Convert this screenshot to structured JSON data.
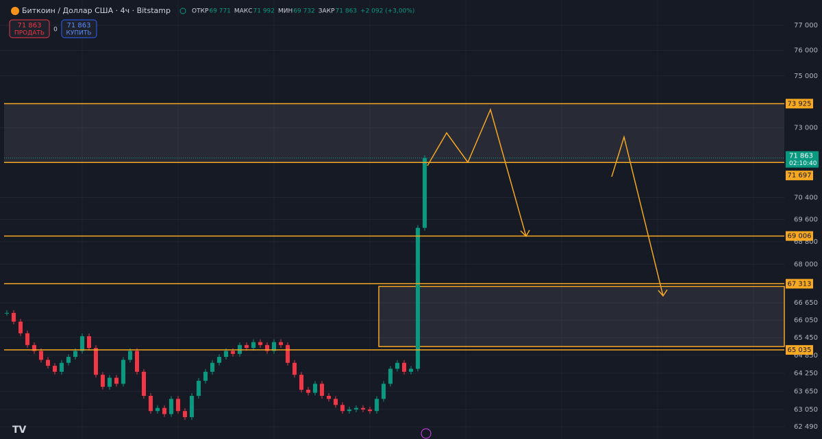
{
  "header": {
    "symbol": "Биткоин / Доллар США · 4ч · Bitstamp",
    "ohlc": [
      {
        "label": "ОТКР",
        "value": "69 771"
      },
      {
        "label": "МАКС",
        "value": "71 992"
      },
      {
        "label": "МИН",
        "value": "69 732"
      },
      {
        "label": "ЗАКР",
        "value": "71 863"
      }
    ],
    "change": "+2 092 (+3,00%)"
  },
  "trade_panel": {
    "sell_price": "71 863",
    "sell_label": "ПРОДАТЬ",
    "spread": "0",
    "buy_price": "71 863",
    "buy_label": "КУПИТЬ"
  },
  "price_axis": {
    "log": true,
    "ylim": [
      62090,
      78020
    ],
    "ticks": [
      {
        "value": 77000,
        "label": "77 000"
      },
      {
        "value": 76000,
        "label": "76 000"
      },
      {
        "value": 75000,
        "label": "75 000"
      },
      {
        "value": 73000,
        "label": "73 000"
      },
      {
        "value": 70400,
        "label": "70 400"
      },
      {
        "value": 69600,
        "label": "69 600"
      },
      {
        "value": 68800,
        "label": "68 800"
      },
      {
        "value": 68000,
        "label": "68 000"
      },
      {
        "value": 66650,
        "label": "66 650"
      },
      {
        "value": 66050,
        "label": "66 050"
      },
      {
        "value": 65450,
        "label": "65 450"
      },
      {
        "value": 64850,
        "label": "64 850"
      },
      {
        "value": 64250,
        "label": "64 250"
      },
      {
        "value": 63650,
        "label": "63 650"
      },
      {
        "value": 63050,
        "label": "63 050"
      },
      {
        "value": 62490,
        "label": "62 490"
      }
    ]
  },
  "levels": [
    {
      "value": 73925,
      "label": "73 925"
    },
    {
      "value": 71697,
      "label": "71 697"
    },
    {
      "value": 69006,
      "label": "69 006"
    },
    {
      "value": 67313,
      "label": "67 313"
    },
    {
      "value": 65035,
      "label": "65 035"
    }
  ],
  "current_price": {
    "value": 71863,
    "label": "71 863",
    "countdown": "02:10:40"
  },
  "candles": {
    "closes": [
      66300,
      66000,
      65600,
      65200,
      65000,
      64700,
      64500,
      64300,
      64600,
      64800,
      65000,
      65500,
      65100,
      64200,
      63800,
      64100,
      63900,
      64700,
      65000,
      64300,
      63500,
      63000,
      63100,
      62900,
      63400,
      63000,
      62800,
      63500,
      64000,
      64300,
      64600,
      64800,
      65000,
      64900,
      65200,
      65100,
      65300,
      65200,
      65000,
      65300,
      65200,
      64600,
      64200,
      63700,
      63600,
      63900,
      63500,
      63400,
      63200,
      63000,
      63050,
      63100,
      63050,
      63000,
      63400,
      63900,
      64400,
      64600,
      64300,
      64400,
      69300,
      71863
    ]
  }
}
